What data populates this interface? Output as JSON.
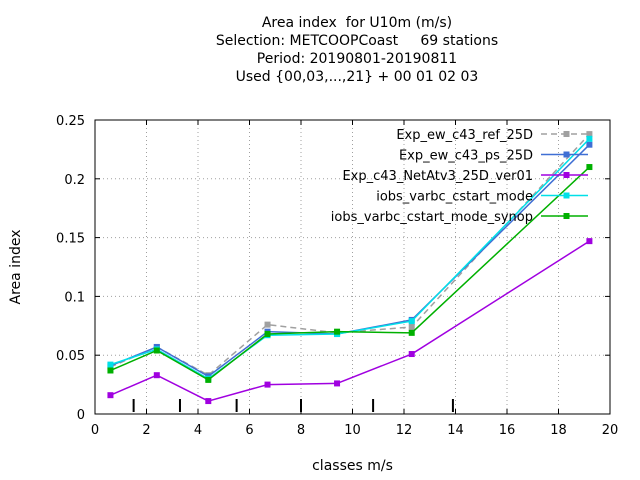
{
  "chart_data": {
    "type": "line",
    "title_lines": [
      "Area index  for U10m (m/s)",
      "Selection: METCOOPCoast     69 stations",
      "Period: 20190801-20190811",
      "Used {00,03,...,21} + 00 01 02 03"
    ],
    "xlabel": "classes m/s",
    "ylabel": "Area index",
    "xlim": [
      0,
      20
    ],
    "ylim": [
      0,
      0.25
    ],
    "x_ticks": [
      0,
      2,
      4,
      6,
      8,
      10,
      12,
      14,
      16,
      18,
      20
    ],
    "x_tick_labels": [
      "0",
      "2",
      "4",
      "6",
      "8",
      "10",
      "12",
      "14",
      "16",
      "18",
      "20"
    ],
    "y_ticks": [
      0,
      0.05,
      0.1,
      0.15,
      0.2,
      0.25
    ],
    "y_tick_labels": [
      "0",
      "0.05",
      "0.1",
      "0.15",
      "0.2",
      "0.25"
    ],
    "grid": true,
    "legend_position": "top-right",
    "class_boundaries": [
      1.5,
      3.3,
      5.5,
      8,
      10.8,
      13.9
    ],
    "x": [
      0.6,
      2.4,
      4.4,
      6.7,
      9.4,
      12.3,
      19.2
    ],
    "series": [
      {
        "name": "Exp_ew_c43_ref_25D",
        "color": "#a0a0a0",
        "dashed": true,
        "values": [
          0.04,
          0.057,
          0.033,
          0.076,
          0.069,
          0.074,
          0.238
        ]
      },
      {
        "name": "Exp_ew_c43_ps_25D",
        "color": "#3f6fd4",
        "dashed": false,
        "values": [
          0.041,
          0.057,
          0.032,
          0.07,
          0.068,
          0.08,
          0.229
        ]
      },
      {
        "name": "Exp_c43_NetAtv3_25D_ver01",
        "color": "#a000e0",
        "dashed": false,
        "values": [
          0.016,
          0.033,
          0.011,
          0.025,
          0.026,
          0.051,
          0.147
        ]
      },
      {
        "name": "iobs_varbc_cstart_mode",
        "color": "#00e0e8",
        "dashed": false,
        "values": [
          0.042,
          0.055,
          0.03,
          0.067,
          0.068,
          0.079,
          0.234
        ]
      },
      {
        "name": "iobs_varbc_cstart_mode_synop",
        "color": "#00b000",
        "dashed": false,
        "values": [
          0.037,
          0.054,
          0.029,
          0.068,
          0.07,
          0.069,
          0.21
        ]
      }
    ]
  }
}
